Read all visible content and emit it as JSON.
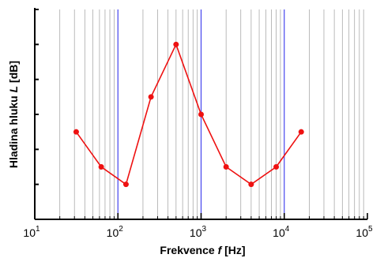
{
  "chart_data": {
    "type": "line",
    "xscale": "log",
    "xlim": [
      10,
      100000
    ],
    "ylim": [
      0,
      6
    ],
    "x": [
      31.5,
      63,
      125,
      250,
      500,
      1000,
      2000,
      4000,
      8000,
      16000
    ],
    "series": [
      {
        "values": [
          2.5,
          1.5,
          1.0,
          3.5,
          5.0,
          3.0,
          1.5,
          1.0,
          1.5,
          2.5
        ]
      }
    ],
    "xlabel": {
      "prefix": "Frekvence ",
      "var": "f",
      "suffix": " [Hz]"
    },
    "ylabel": {
      "prefix": "Hladina hluku ",
      "var": "L",
      "suffix": " [dB]"
    },
    "xticks": [
      {
        "base": "10",
        "exp": "1"
      },
      {
        "base": "10",
        "exp": "2"
      },
      {
        "base": "10",
        "exp": "3"
      },
      {
        "base": "10",
        "exp": "4"
      },
      {
        "base": "10",
        "exp": "5"
      }
    ],
    "grid": "vertical minor lines gray, decade lines blue",
    "colors": {
      "line": "#ee1111",
      "marker": "#ee1111",
      "minor_grid": "#aaaaaa",
      "decade_grid": "#4444ee"
    }
  }
}
